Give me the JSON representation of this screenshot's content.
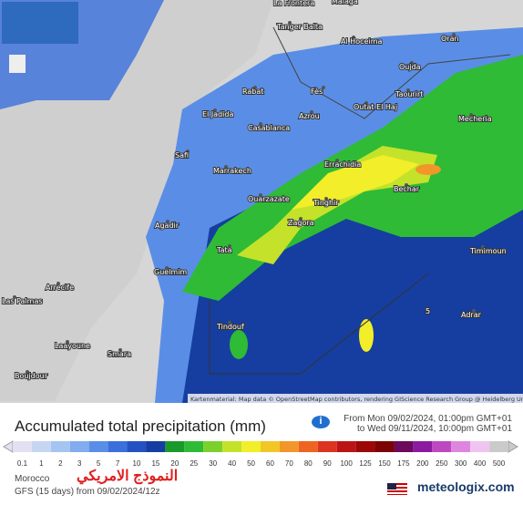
{
  "map": {
    "cities": [
      "La Frontera",
      "Malaga",
      "Tanger Balta",
      "Al Hoceima",
      "Oran",
      "Oujda",
      "Rabat",
      "Fès",
      "Taourirt",
      "Outat El Haj",
      "Azrou",
      "Mecheria",
      "El Jadida",
      "Casablanca",
      "Safi",
      "Marrakech",
      "Errachidia",
      "Bechar",
      "Ouarzazate",
      "Tinghir",
      "Agadir",
      "Zagora",
      "Tata",
      "Guelmim",
      "Timimoun",
      "Tindouf",
      "Adrar",
      "Arrecife",
      "Las Palmas",
      "Laayoune",
      "Smara",
      "Boujdour"
    ],
    "contour_label": "5",
    "attribution": "Kartenmaterial: Map data © OpenStreetMap contributors, rendering GIScience Research Group @ Heidelberg University"
  },
  "footer": {
    "title": "Accumulated total precipitation (mm)",
    "from": "From Mon 09/02/2024, 01:00pm GMT+01",
    "to": "to Wed 09/11/2024, 10:00pm GMT+01",
    "region": "Morocco",
    "model": "GFS (15 days)  from 09/02/2024/12z",
    "model_arabic": "النموذج الامريكي",
    "brand": "meteologix.com"
  },
  "legend": {
    "values": [
      0.1,
      1,
      2,
      3,
      5,
      7,
      10,
      15,
      20,
      25,
      30,
      40,
      50,
      60,
      70,
      80,
      90,
      100,
      125,
      150,
      175,
      200,
      250,
      300,
      400,
      500
    ],
    "colors": [
      "#e4e0f2",
      "#c6d6f2",
      "#a6c4f2",
      "#82acee",
      "#5a8ee6",
      "#3a6fdc",
      "#2552c2",
      "#163ea0",
      "#1a9a2a",
      "#2fbb36",
      "#7cd02c",
      "#c4e22a",
      "#f2ee2a",
      "#f2c624",
      "#f2962a",
      "#ee6420",
      "#dc3420",
      "#bc1414",
      "#9c0808",
      "#7c0404",
      "#6c0a5c",
      "#8c1aa0",
      "#be48c0",
      "#de86de",
      "#f0c4f0",
      "#cacaca"
    ]
  }
}
